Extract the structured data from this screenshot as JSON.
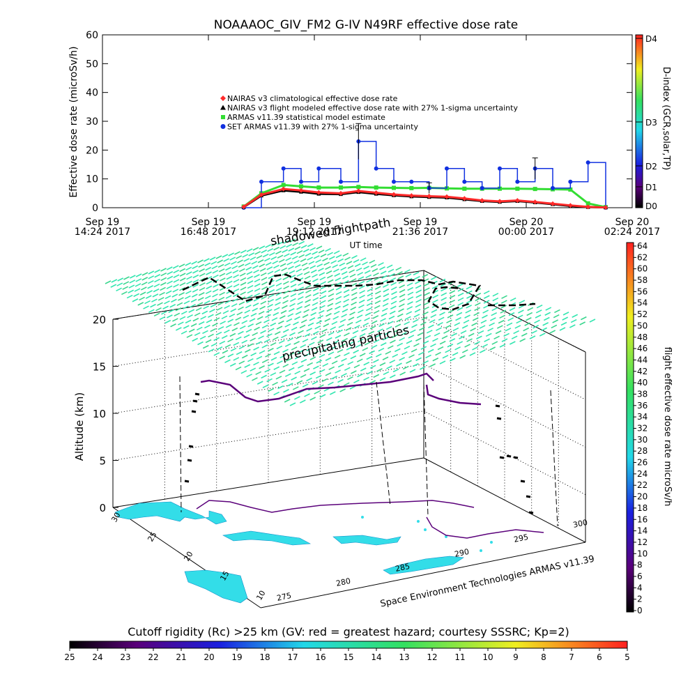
{
  "top_title": "NOAAAOC_GIV_FM2 G-IV   N49RF  effective dose rate",
  "top_ylabel": "Effective dose rate (microSv/h)",
  "top_xlabel": "UT time",
  "top_legend": [
    {
      "label": "NAIRAS v3 climatological effective dose rate",
      "color": "#ff2a2a",
      "marker": "diamond"
    },
    {
      "label": "NAIRAS v3 flight modeled effective dose rate with 27% 1-sigma uncertainty",
      "color": "#000000",
      "marker": "triangle"
    },
    {
      "label": "ARMAS v11.39 statistical model estimate",
      "color": "#33dd33",
      "marker": "square"
    },
    {
      "label": "SET ARMAS v11.39 with 27% 1-sigma uncertainty",
      "color": "#1030e0",
      "marker": "circle"
    }
  ],
  "top_x_ticks": [
    [
      "Sep 19",
      "14:24 2017"
    ],
    [
      "Sep 19",
      "16:48 2017"
    ],
    [
      "Sep 19",
      "19:12 2017"
    ],
    [
      "Sep 19",
      "21:36 2017"
    ],
    [
      "Sep 20",
      "00:00 2017"
    ],
    [
      "Sep 20",
      "02:24 2017"
    ]
  ],
  "top_y_ticks": [
    "0",
    "10",
    "20",
    "30",
    "40",
    "50",
    "60"
  ],
  "dindex_label": "D-index (GCR,solar,TP)",
  "dindex_ticks": [
    "D4",
    "D3",
    "D2",
    "D1",
    "D0"
  ],
  "overlay_labels": {
    "shadow": "shadowed flightpath",
    "precip": "precipitating particles",
    "credit": "Space Environment Technologies ARMAS v11.39"
  },
  "ylabel_3d": "Altitude (km)",
  "alt_ticks": [
    "0",
    "5",
    "10",
    "15",
    "20"
  ],
  "lat_ticks": [
    "30",
    "25",
    "20",
    "15",
    "10"
  ],
  "lon_ticks": [
    "275",
    "280",
    "285",
    "290",
    "295",
    "300"
  ],
  "right_bar_label": "flight effective dose rate microSv/h",
  "right_bar_ticks": [
    "64",
    "62",
    "60",
    "58",
    "56",
    "54",
    "52",
    "50",
    "48",
    "46",
    "44",
    "42",
    "40",
    "38",
    "36",
    "34",
    "32",
    "30",
    "28",
    "26",
    "24",
    "22",
    "20",
    "18",
    "16",
    "14",
    "12",
    "10",
    "8",
    "6",
    "4",
    "2",
    "0"
  ],
  "bottom_bar_label": "Cutoff rigidity (Rc) >25 km (GV: red = greatest hazard; courtesy SSSRC; Kp=2)",
  "bottom_bar_ticks": [
    "25",
    "24",
    "23",
    "22",
    "21",
    "20",
    "19",
    "18",
    "17",
    "16",
    "15",
    "14",
    "13",
    "12",
    "11",
    "10",
    "9",
    "8",
    "7",
    "6",
    "5"
  ],
  "colors": {
    "naira_clim": "#ff2a2a",
    "naira_flight": "#000000",
    "armas_model": "#33dd33",
    "set_armas": "#1030e0",
    "grid_particles": "#33e6b0",
    "land": "#33dde8"
  },
  "chart_data": {
    "type": "line",
    "title": "NOAAAOC_GIV_FM2 G-IV   N49RF  effective dose rate",
    "xlabel": "UT time",
    "ylabel": "Effective dose rate (microSv/h)",
    "ylim": [
      0,
      60
    ],
    "xlim_hours_from_2017_09_19": [
      14.4,
      26.4
    ],
    "x": [
      17.6,
      18.0,
      18.5,
      18.9,
      19.3,
      19.8,
      20.2,
      20.6,
      21.0,
      21.4,
      21.8,
      22.2,
      22.6,
      23.0,
      23.4,
      23.8,
      24.2,
      24.6,
      25.0,
      25.4,
      25.8
    ],
    "series": [
      {
        "name": "NAIRAS v3 climatological effective dose rate",
        "values": [
          0.3,
          4.5,
          6.5,
          6.0,
          5.3,
          5.0,
          5.8,
          5.2,
          4.6,
          4.2,
          4.0,
          3.8,
          3.2,
          2.5,
          2.2,
          2.5,
          2.0,
          1.4,
          0.8,
          0.3,
          0.1
        ]
      },
      {
        "name": "NAIRAS v3 flight modeled effective dose rate with 27% 1-sigma uncertainty",
        "values": [
          0.2,
          4.2,
          6.0,
          5.5,
          4.8,
          4.7,
          5.4,
          4.8,
          4.3,
          3.9,
          3.7,
          3.5,
          2.9,
          2.3,
          2.0,
          2.3,
          1.8,
          1.2,
          0.6,
          0.2,
          0.1
        ]
      },
      {
        "name": "ARMAS v11.39 statistical model estimate",
        "values": [
          0.4,
          5.0,
          7.9,
          7.4,
          7.0,
          7.0,
          7.2,
          7.0,
          6.9,
          6.8,
          6.9,
          6.7,
          6.6,
          6.6,
          6.6,
          6.6,
          6.5,
          6.4,
          6.3,
          1.5,
          0.2
        ]
      },
      {
        "name": "SET ARMAS v11.39 with 27% 1-sigma uncertainty",
        "values": [
          0.0,
          9.0,
          13.6,
          9.0,
          13.6,
          9.0,
          23.0,
          13.6,
          9.0,
          9.0,
          6.8,
          13.6,
          9.0,
          6.8,
          13.6,
          9.0,
          13.6,
          6.8,
          9.0,
          15.7,
          0.0
        ]
      }
    ],
    "colorbars": [
      {
        "label": "flight effective dose rate microSv/h",
        "range": [
          0,
          64
        ]
      },
      {
        "label": "Cutoff rigidity (Rc) >25 km (GV: red = greatest hazard; courtesy SSSRC; Kp=2)",
        "range": [
          25,
          5
        ]
      },
      {
        "label": "D-index (GCR,solar,TP)",
        "ticks": [
          "D0",
          "D1",
          "D2",
          "D3",
          "D4"
        ]
      }
    ],
    "z_axis": {
      "label": "Altitude (km)",
      "ticks": [
        0,
        5,
        10,
        15,
        20
      ]
    },
    "lat_ticks": [
      30,
      25,
      20,
      15,
      10
    ],
    "lon_ticks": [
      275,
      280,
      285,
      290,
      295,
      300
    ]
  }
}
